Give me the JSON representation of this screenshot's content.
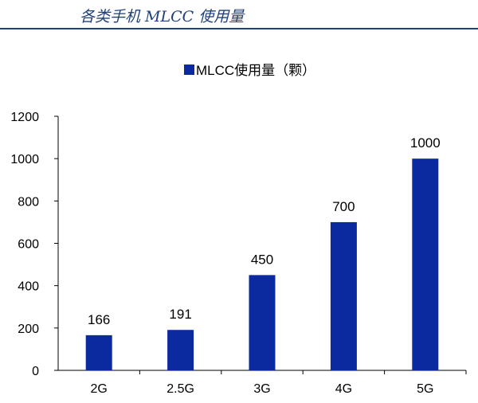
{
  "header": {
    "title": "各类手机 MLCC 使用量"
  },
  "chart_data": {
    "type": "bar",
    "categories": [
      "2G",
      "2.5G",
      "3G",
      "4G",
      "5G"
    ],
    "series": [
      {
        "name": "MLCC使用量（颗）",
        "values": [
          166,
          191,
          450,
          700,
          1000
        ],
        "color": "#0b2aa0"
      }
    ],
    "yticks": [
      "0",
      "200",
      "400",
      "600",
      "800",
      "1000",
      "1200"
    ],
    "ylim": [
      0,
      1200
    ],
    "data_labels": [
      "166",
      "191",
      "450",
      "700",
      "1000"
    ],
    "legend": {
      "position": "top-center"
    },
    "grid": false,
    "title": "",
    "xlabel": "",
    "ylabel": ""
  }
}
